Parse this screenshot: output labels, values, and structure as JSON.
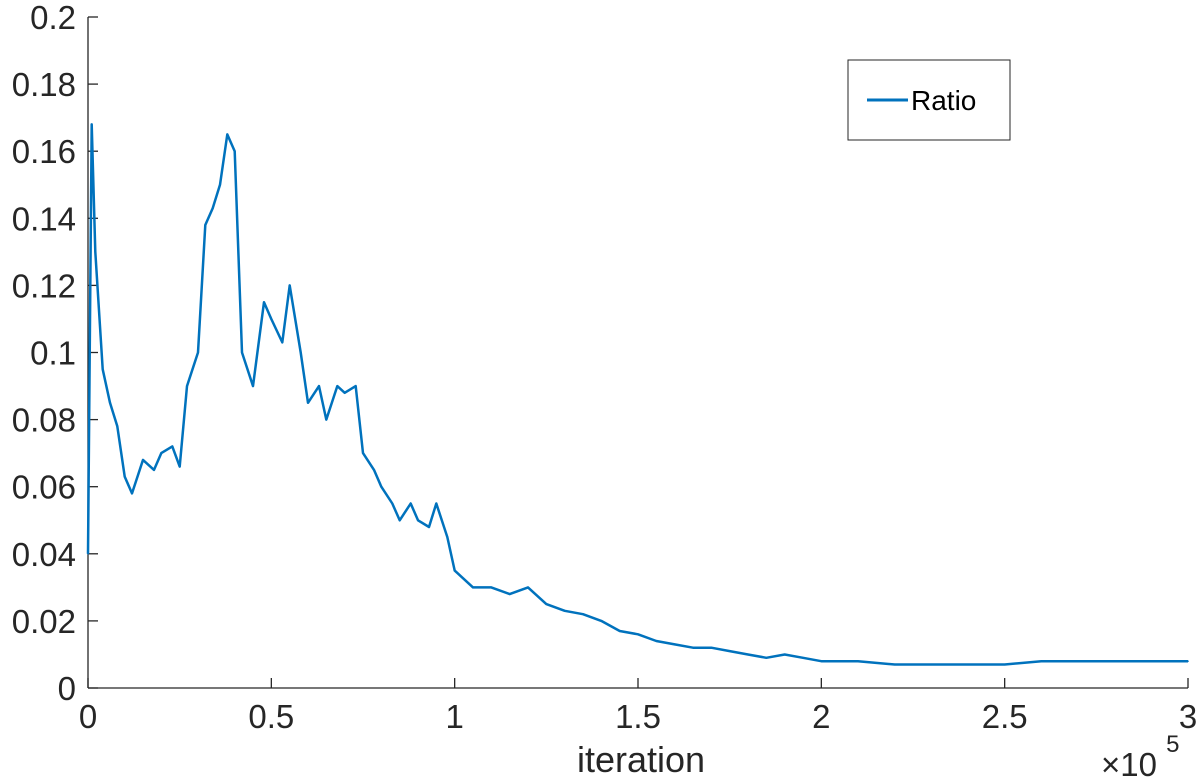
{
  "chart_data": {
    "type": "line",
    "title": "",
    "xlabel": "iteration",
    "ylabel": "",
    "x_exponent_label": "×10",
    "x_exponent_power": "5",
    "xlim": [
      0,
      300000
    ],
    "ylim": [
      0,
      0.2
    ],
    "xticks": [
      0,
      50000,
      100000,
      150000,
      200000,
      250000,
      300000
    ],
    "xtick_labels": [
      "0",
      "0.5",
      "1",
      "1.5",
      "2",
      "2.5",
      "3"
    ],
    "yticks": [
      0,
      0.02,
      0.04,
      0.06,
      0.08,
      0.1,
      0.12,
      0.14,
      0.16,
      0.18,
      0.2
    ],
    "ytick_labels": [
      "0",
      "0.02",
      "0.04",
      "0.06",
      "0.08",
      "0.1",
      "0.12",
      "0.14",
      "0.16",
      "0.18",
      "0.2"
    ],
    "grid": false,
    "legend_position": "top-right",
    "series": [
      {
        "name": "Ratio",
        "color": "#0072BD",
        "x": [
          0,
          1000,
          2000,
          4000,
          6000,
          8000,
          10000,
          12000,
          15000,
          18000,
          20000,
          23000,
          25000,
          27000,
          30000,
          32000,
          34000,
          36000,
          38000,
          40000,
          42000,
          45000,
          48000,
          50000,
          53000,
          55000,
          58000,
          60000,
          63000,
          65000,
          68000,
          70000,
          73000,
          75000,
          78000,
          80000,
          83000,
          85000,
          88000,
          90000,
          93000,
          95000,
          98000,
          100000,
          105000,
          110000,
          115000,
          120000,
          125000,
          130000,
          135000,
          140000,
          145000,
          150000,
          155000,
          160000,
          165000,
          170000,
          175000,
          180000,
          185000,
          190000,
          195000,
          200000,
          210000,
          220000,
          230000,
          240000,
          250000,
          260000,
          270000,
          280000,
          290000,
          300000
        ],
        "values": [
          0.04,
          0.168,
          0.13,
          0.095,
          0.085,
          0.078,
          0.063,
          0.058,
          0.068,
          0.065,
          0.07,
          0.072,
          0.066,
          0.09,
          0.1,
          0.138,
          0.143,
          0.15,
          0.165,
          0.16,
          0.1,
          0.09,
          0.115,
          0.11,
          0.103,
          0.12,
          0.1,
          0.085,
          0.09,
          0.08,
          0.09,
          0.088,
          0.09,
          0.07,
          0.065,
          0.06,
          0.055,
          0.05,
          0.055,
          0.05,
          0.048,
          0.055,
          0.045,
          0.035,
          0.03,
          0.03,
          0.028,
          0.03,
          0.025,
          0.023,
          0.022,
          0.02,
          0.017,
          0.016,
          0.014,
          0.013,
          0.012,
          0.012,
          0.011,
          0.01,
          0.009,
          0.01,
          0.009,
          0.008,
          0.008,
          0.007,
          0.007,
          0.007,
          0.007,
          0.008,
          0.008,
          0.008,
          0.008,
          0.008
        ]
      }
    ]
  }
}
